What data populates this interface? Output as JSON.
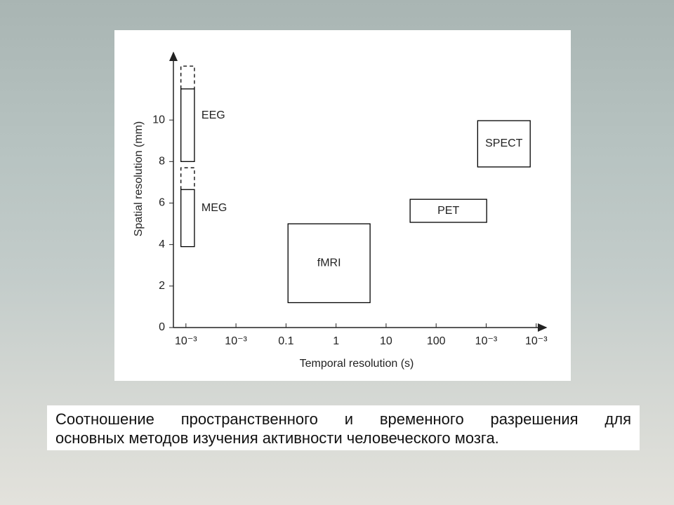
{
  "chart_data": {
    "type": "region",
    "xlabel": "Temporal resolution (s)",
    "ylabel": "Spatial resolution (mm)",
    "categories": [
      "10⁻³",
      "10⁻³",
      "0.1",
      "1",
      "10",
      "100",
      "10⁻³",
      "10⁻³"
    ],
    "xlim": [
      -0.25,
      7.2
    ],
    "ylim": [
      0,
      13.25
    ],
    "yticks": [
      0,
      2,
      4,
      6,
      8,
      10
    ],
    "color": "#000000",
    "series": [
      {
        "name": "EEG",
        "x": [
          -0.1,
          0.17
        ],
        "y": [
          8,
          12.6
        ],
        "dashed_above": 11.5,
        "label_pos": "right"
      },
      {
        "name": "MEG",
        "x": [
          -0.1,
          0.17
        ],
        "y": [
          3.9,
          7.7
        ],
        "dashed_above": 6.65,
        "label_pos": "right"
      },
      {
        "name": "fMRI",
        "x": [
          2.04,
          3.68
        ],
        "y": [
          1.2,
          5.0
        ],
        "label_pos": "center"
      },
      {
        "name": "PET",
        "x": [
          4.48,
          6.01
        ],
        "y": [
          5.07,
          6.18
        ],
        "label_pos": "center"
      },
      {
        "name": "SPECT",
        "x": [
          5.83,
          6.88
        ],
        "y": [
          7.74,
          9.97
        ],
        "label_pos": "center"
      }
    ]
  },
  "caption": [
    "Соотношение пространственного и временного разрешения для",
    "основных методов изучения активности человеческого мозга."
  ]
}
